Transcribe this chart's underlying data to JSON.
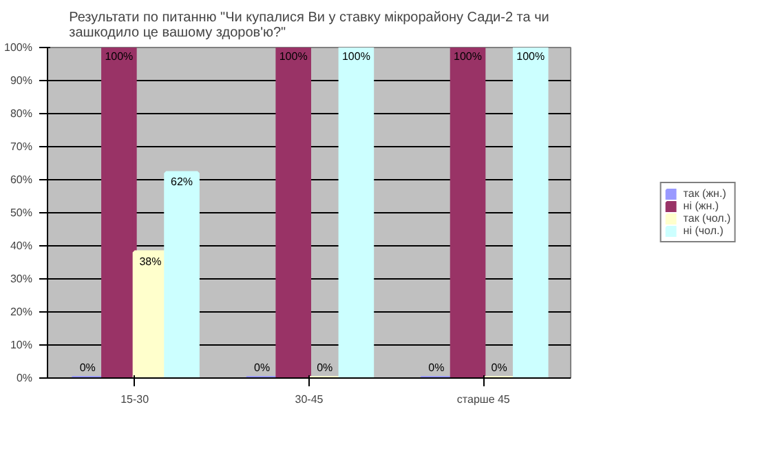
{
  "chart_data": {
    "type": "bar",
    "title": "Результати по питанню \"Чи купалися Ви у ставку мікрорайону Сади-2 та чи зашкодило це вашому здоров'ю?\"",
    "categories": [
      "15-30",
      "30-45",
      "старше 45"
    ],
    "series": [
      {
        "name": "так (жн.)",
        "color": "#9999ff",
        "values": [
          0,
          0,
          0
        ],
        "value_labels": [
          "0%",
          "0%",
          "0%"
        ]
      },
      {
        "name": "ні (жн.)",
        "color": "#993366",
        "values": [
          100,
          100,
          100
        ],
        "value_labels": [
          "100%",
          "100%",
          "100%"
        ]
      },
      {
        "name": "так (чол.)",
        "color": "#ffffcc",
        "values": [
          38,
          0,
          0
        ],
        "value_labels": [
          "38%",
          "0%",
          "0%"
        ]
      },
      {
        "name": "ні (чол.)",
        "color": "#ccffff",
        "values": [
          62,
          100,
          100
        ],
        "value_labels": [
          "62%",
          "100%",
          "100%"
        ]
      }
    ],
    "ylim": [
      0,
      100
    ],
    "yticks": [
      {
        "value": 0,
        "label": "0%"
      },
      {
        "value": 10,
        "label": "10%"
      },
      {
        "value": 20,
        "label": "20%"
      },
      {
        "value": 30,
        "label": "30%"
      },
      {
        "value": 40,
        "label": "40%"
      },
      {
        "value": 50,
        "label": "50%"
      },
      {
        "value": 60,
        "label": "60%"
      },
      {
        "value": 70,
        "label": "70%"
      },
      {
        "value": 80,
        "label": "80%"
      },
      {
        "value": 90,
        "label": "90%"
      },
      {
        "value": 100,
        "label": "100%"
      }
    ],
    "grid": "y",
    "legend": "right"
  }
}
